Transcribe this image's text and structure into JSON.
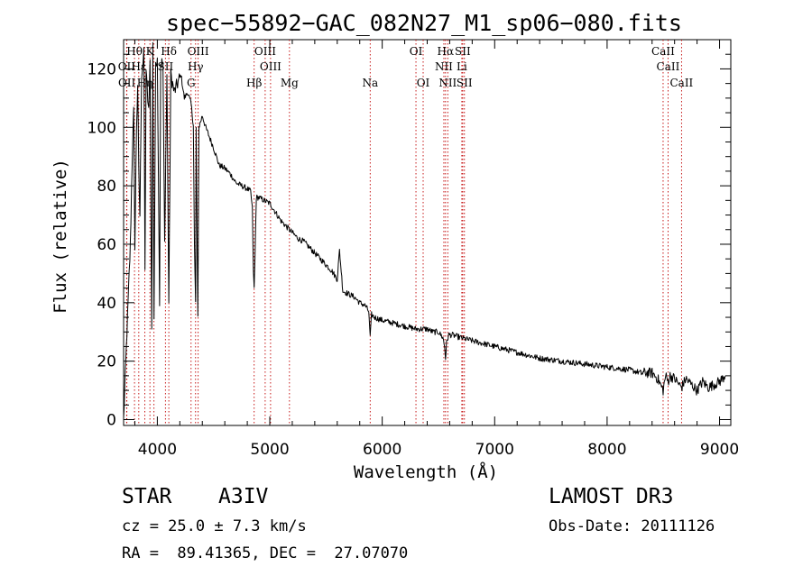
{
  "chart_data": {
    "type": "line",
    "title": "spec−55892−GAC_082N27_M1_sp06−080.fits",
    "xlabel": "Wavelength (Å)",
    "ylabel": "Flux (relative)",
    "xlim": [
      3700,
      9100
    ],
    "ylim": [
      -2,
      130
    ],
    "xticks": [
      4000,
      5000,
      6000,
      7000,
      8000,
      9000
    ],
    "yticks": [
      0,
      20,
      40,
      60,
      80,
      100,
      120
    ],
    "grid": false,
    "series": [
      {
        "name": "spectrum",
        "x": [
          3700,
          3720,
          3740,
          3760,
          3780,
          3790,
          3800,
          3815,
          3825,
          3835,
          3845,
          3860,
          3880,
          3890,
          3900,
          3910,
          3925,
          3935,
          3950,
          3960,
          3970,
          3985,
          4000,
          4020,
          4030,
          4050,
          4065,
          4085,
          4102,
          4120,
          4150,
          4180,
          4210,
          4240,
          4270,
          4300,
          4320,
          4330,
          4340,
          4345,
          4360,
          4370,
          4400,
          4430,
          4460,
          4500,
          4550,
          4600,
          4650,
          4700,
          4750,
          4800,
          4830,
          4845,
          4855,
          4861,
          4868,
          4880,
          4900,
          4950,
          5000,
          5050,
          5100,
          5150,
          5200,
          5250,
          5300,
          5350,
          5400,
          5450,
          5500,
          5550,
          5600,
          5620,
          5650,
          5700,
          5750,
          5800,
          5850,
          5880,
          5893,
          5905,
          5930,
          6000,
          6100,
          6200,
          6300,
          6400,
          6450,
          6500,
          6540,
          6555,
          6563,
          6572,
          6590,
          6620,
          6700,
          6800,
          6900,
          7000,
          7100,
          7200,
          7300,
          7400,
          7500,
          7600,
          7700,
          7800,
          7900,
          8000,
          8100,
          8200,
          8300,
          8400,
          8450,
          8498,
          8520,
          8542,
          8560,
          8600,
          8662,
          8700,
          8750,
          8800,
          8850,
          8900,
          8950,
          9000,
          9050
        ],
        "values": [
          0,
          20,
          40,
          60,
          95,
          105,
          60,
          100,
          115,
          85,
          70,
          118,
          125,
          50,
          120,
          112,
          105,
          125,
          30,
          128,
          35,
          120,
          125,
          40,
          122,
          122,
          60,
          118,
          40,
          118,
          112,
          115,
          118,
          110,
          112,
          108,
          101,
          60,
          40,
          100,
          35,
          100,
          104,
          100,
          97,
          93,
          87,
          86,
          84,
          81,
          80,
          79,
          78,
          72,
          50,
          45,
          55,
          76,
          76,
          75,
          74,
          71,
          68,
          66,
          64,
          62,
          61,
          59,
          57,
          55,
          53,
          51,
          48,
          58,
          44,
          43,
          42,
          40,
          39,
          37,
          28,
          36,
          35,
          34,
          33,
          32,
          31,
          31,
          30,
          30,
          28,
          25,
          21,
          26,
          29,
          29,
          28,
          27,
          26,
          25,
          24,
          23,
          22,
          21,
          20.5,
          20,
          19.5,
          19,
          18.5,
          18,
          17.5,
          17,
          16,
          16,
          14,
          10,
          15,
          13,
          15,
          14,
          11,
          14,
          12,
          10,
          13,
          11,
          12,
          13,
          15
        ]
      }
    ],
    "line_labels": {
      "row1": [
        {
          "label": "Hθ",
          "x": 3797
        },
        {
          "label": "K",
          "x": 3934
        },
        {
          "label": "Hδ",
          "x": 4102
        },
        {
          "label": "OIII",
          "x": 4363
        },
        {
          "label": "OIII",
          "x": 4959
        },
        {
          "label": "OI",
          "x": 6300
        },
        {
          "label": "Hα",
          "x": 6563
        },
        {
          "label": "SII",
          "x": 6716
        },
        {
          "label": "CaII",
          "x": 8498
        }
      ],
      "row2": [
        {
          "label": "OII",
          "x": 3727
        },
        {
          "label": "Hε",
          "x": 3835
        },
        {
          "label": "SII",
          "x": 4072
        },
        {
          "label": "Hγ",
          "x": 4340
        },
        {
          "label": "OIII",
          "x": 5007
        },
        {
          "label": "NII",
          "x": 6548
        },
        {
          "label": "Li",
          "x": 6708
        },
        {
          "label": "CaII",
          "x": 8542
        }
      ],
      "row3": [
        {
          "label": "OII",
          "x": 3729
        },
        {
          "label": "Hη",
          "x": 3889
        },
        {
          "label": "G",
          "x": 4300
        },
        {
          "label": "Hβ",
          "x": 4861
        },
        {
          "label": "Mg",
          "x": 5175
        },
        {
          "label": "Na",
          "x": 5893
        },
        {
          "label": "OI",
          "x": 6364
        },
        {
          "label": "NII",
          "x": 6583
        },
        {
          "label": "SII",
          "x": 6731
        },
        {
          "label": "CaII",
          "x": 8662
        }
      ],
      "markers": [
        3727,
        3729,
        3797,
        3835,
        3889,
        3934,
        3970,
        4072,
        4102,
        4300,
        4340,
        4363,
        4861,
        4959,
        5007,
        5175,
        5893,
        6300,
        6364,
        6548,
        6563,
        6583,
        6708,
        6716,
        6731,
        8498,
        8542,
        8662
      ]
    }
  },
  "info": {
    "object_class": "STAR",
    "subclass": "A3IV",
    "survey": "LAMOST DR3",
    "cz": "cz = 25.0 ± 7.3 km/s",
    "obs_date": "Obs-Date: 20111126",
    "coords": "RA =  89.41365, DEC =  27.07070"
  }
}
